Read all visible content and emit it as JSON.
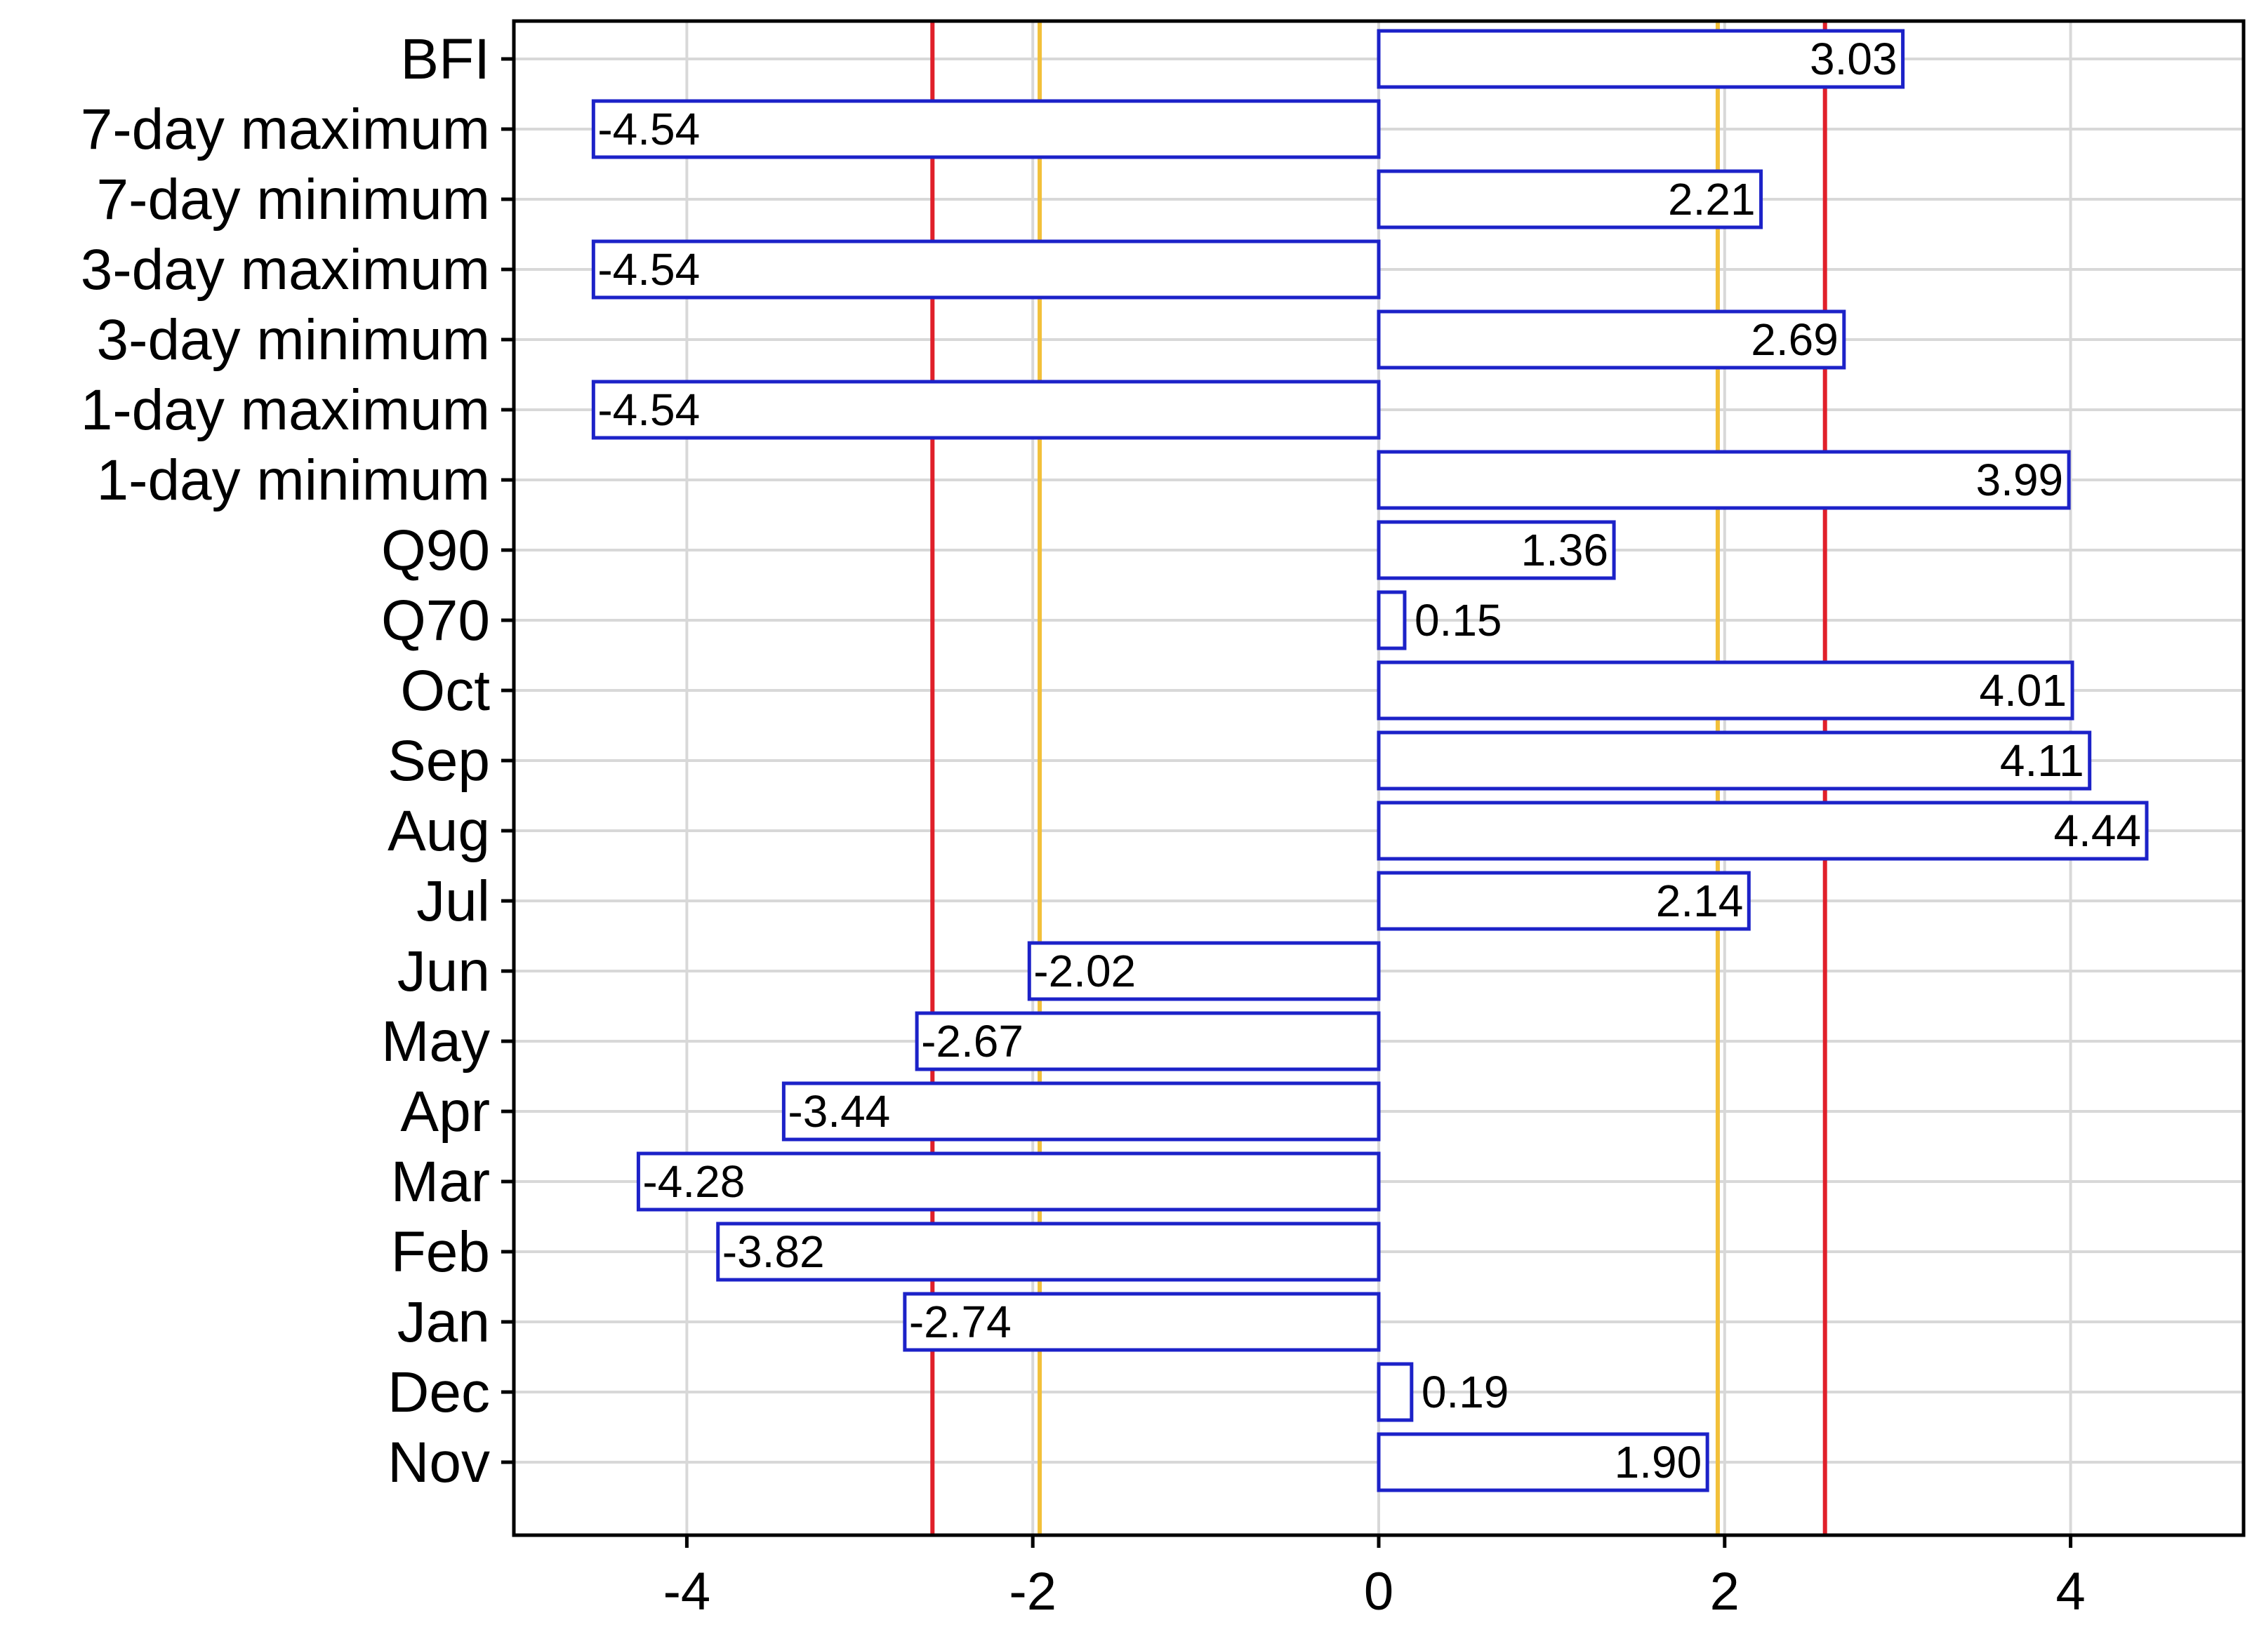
{
  "chart_data": {
    "type": "bar",
    "orientation": "horizontal",
    "categories": [
      "BFI",
      "7-day maximum",
      "7-day minimum",
      "3-day maximum",
      "3-day minimum",
      "1-day maximum",
      "1-day minimum",
      "Q90",
      "Q70",
      "Oct",
      "Sep",
      "Aug",
      "Jul",
      "Jun",
      "May",
      "Apr",
      "Mar",
      "Feb",
      "Jan",
      "Dec",
      "Nov"
    ],
    "values": [
      3.03,
      -4.54,
      2.21,
      -4.54,
      2.69,
      -4.54,
      3.99,
      1.36,
      0.15,
      4.01,
      4.11,
      4.44,
      2.14,
      -2.02,
      -2.67,
      -3.44,
      -4.28,
      -3.82,
      -2.74,
      0.19,
      1.9
    ],
    "value_labels": [
      "3.03",
      "-4.54",
      "2.21",
      "-4.54",
      "2.69",
      "-4.54",
      "3.99",
      "1.36",
      "0.15",
      "4.01",
      "4.11",
      "4.44",
      "2.14",
      "-2.02",
      "-2.67",
      "-3.44",
      "-4.28",
      "-3.82",
      "-2.74",
      "0.19",
      "1.90"
    ],
    "xlim": [
      -5,
      5
    ],
    "xticks": [
      -4,
      -2,
      0,
      2,
      4
    ],
    "xtick_labels": [
      "-4",
      "-2",
      "0",
      "2",
      "4"
    ],
    "reference_lines": [
      {
        "value": -2.58,
        "color": "#e0202a"
      },
      {
        "value": 2.58,
        "color": "#e0202a"
      },
      {
        "value": -1.96,
        "color": "#f2c03a"
      },
      {
        "value": 1.96,
        "color": "#f2c03a"
      }
    ],
    "grid": true,
    "title": "",
    "xlabel": "",
    "ylabel": "",
    "colors": {
      "bar_edge": "#1c22c8",
      "bar_fill": "#ffffff",
      "grid": "#d8d8d8",
      "axis": "#000000"
    }
  }
}
